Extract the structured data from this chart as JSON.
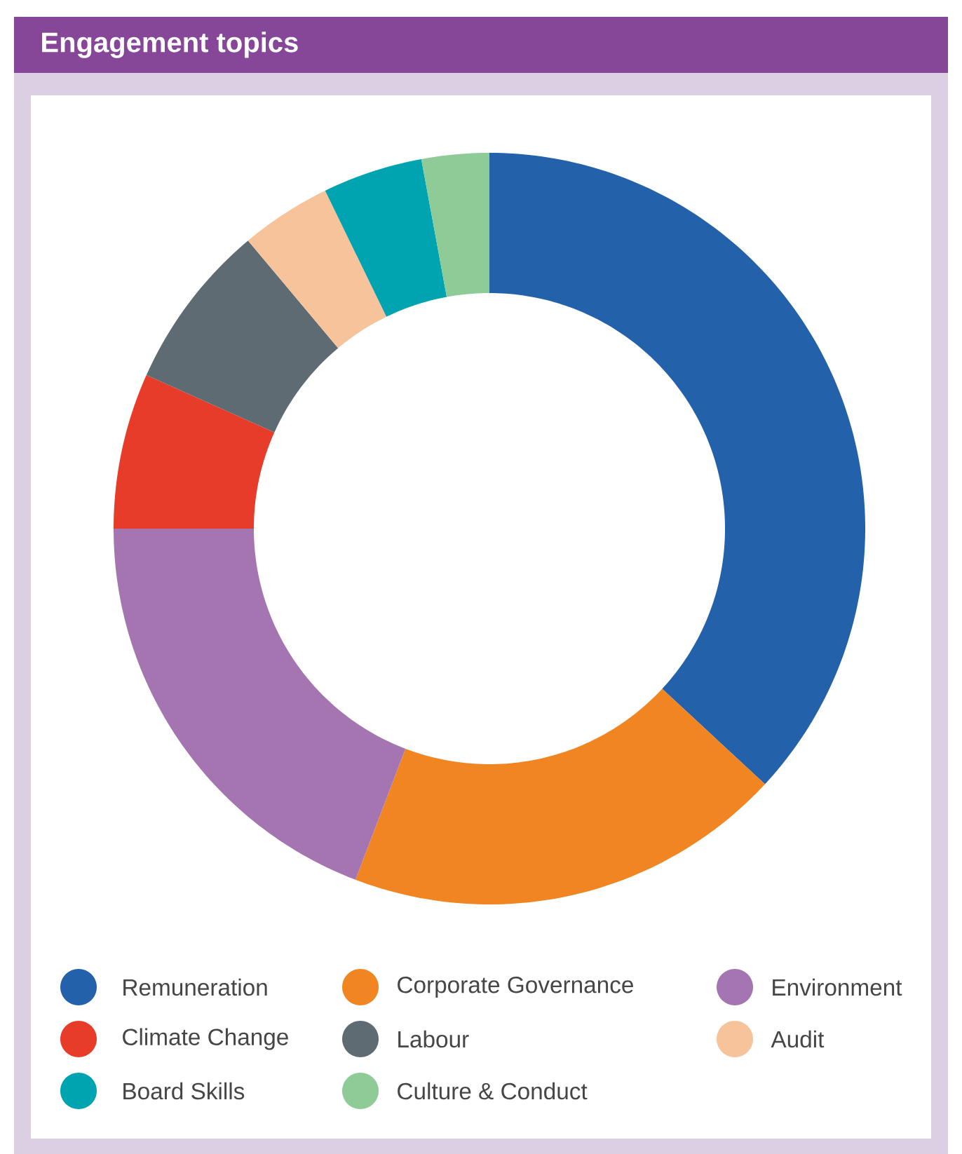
{
  "chart_data": {
    "type": "donut",
    "title": "Engagement topics",
    "categories": [
      "Remuneration",
      "Corporate Governance",
      "Environment",
      "Climate Change",
      "Labour",
      "Audit",
      "Board Skills",
      "Culture & Conduct"
    ],
    "values": [
      36.9,
      18.9,
      19.2,
      6.7,
      7.2,
      3.9,
      4.3,
      2.9
    ],
    "colors": [
      "#2461ab",
      "#f08522",
      "#a575b1",
      "#e83c2b",
      "#5f6b73",
      "#f7c39b",
      "#00a3b0",
      "#8fcb96"
    ],
    "legend": "bottom"
  }
}
